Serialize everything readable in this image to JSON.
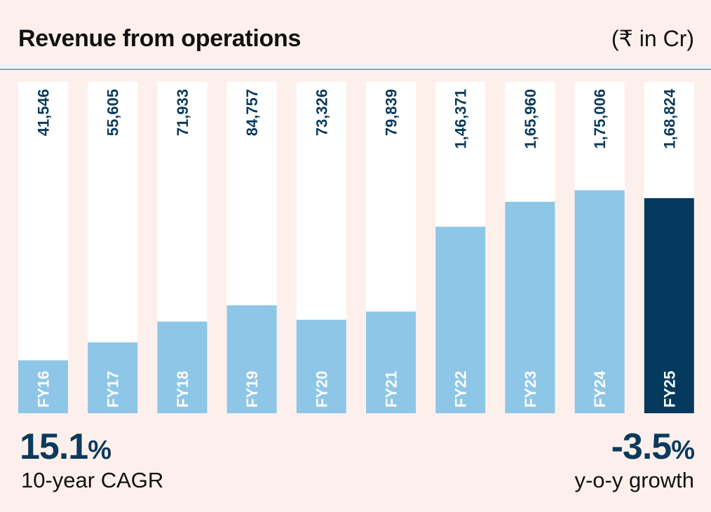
{
  "header": {
    "title": "Revenue from operations",
    "unit": "(₹ in Cr)"
  },
  "chart_data": {
    "type": "bar",
    "title": "Revenue from operations",
    "unit": "(₹ in Cr)",
    "categories": [
      "FY16",
      "FY17",
      "FY18",
      "FY19",
      "FY20",
      "FY21",
      "FY22",
      "FY23",
      "FY24",
      "FY25"
    ],
    "values": [
      41546,
      55605,
      71933,
      84757,
      73326,
      79839,
      146371,
      165960,
      175006,
      168824
    ],
    "value_labels": [
      "41,546",
      "55,605",
      "71,933",
      "84,757",
      "73,326",
      "79,839",
      "1,46,371",
      "1,65,960",
      "1,75,006",
      "1,68,824"
    ],
    "highlight_index": 9,
    "ylim": [
      0,
      260000
    ],
    "grid": false,
    "legend": "none",
    "colors": {
      "bar": "#8ec6e8",
      "highlight": "#053a5e",
      "track": "#ffffff",
      "value_text": "#0b3a5c",
      "category_text": "#ffffff"
    }
  },
  "stats": {
    "left": {
      "value": "15.1",
      "suffix": "%",
      "label": "10-year CAGR"
    },
    "right": {
      "value": "-3.5",
      "suffix": "%",
      "label": "y-o-y growth"
    }
  }
}
